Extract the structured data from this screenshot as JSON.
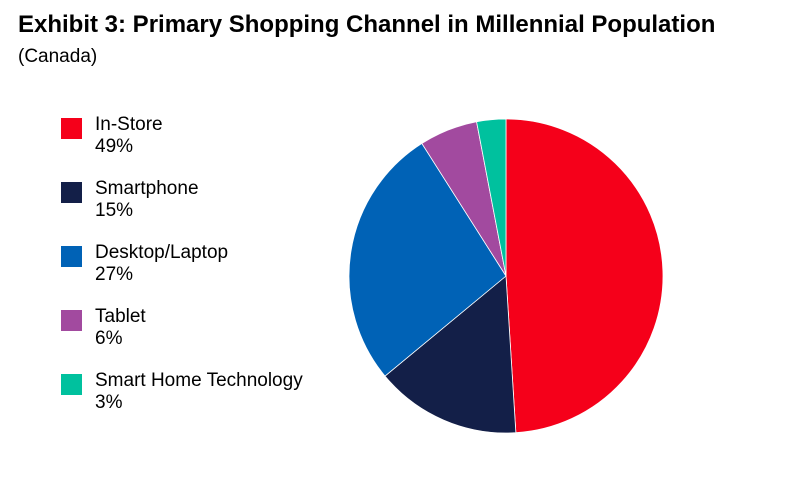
{
  "chart_data": {
    "type": "pie",
    "title": "Exhibit 3: Primary Shopping Channel in Millennial Population",
    "subtitle": "(Canada)",
    "legend_position": "left",
    "start": "top, clockwise",
    "slices": [
      {
        "label": "In-Store",
        "value": 49,
        "value_label": "49%",
        "color": "#f5001a"
      },
      {
        "label": "Smartphone",
        "value": 15,
        "value_label": "15%",
        "color": "#131f48"
      },
      {
        "label": "Desktop/Laptop",
        "value": 27,
        "value_label": "27%",
        "color": "#0062b6"
      },
      {
        "label": "Tablet",
        "value": 6,
        "value_label": "6%",
        "color": "#a24a9f"
      },
      {
        "label": "Smart Home Technology",
        "value": 3,
        "value_label": "3%",
        "color": "#00c19e"
      }
    ]
  }
}
